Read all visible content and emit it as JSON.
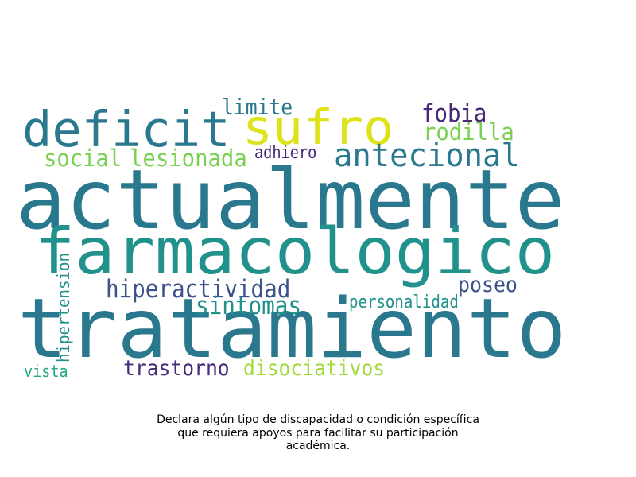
{
  "words": [
    {
      "text": "actualmente",
      "color": "#2a788e"
    },
    {
      "text": "tratamiento",
      "color": "#2a788e"
    },
    {
      "text": "farmacologico",
      "color": "#21918c"
    },
    {
      "text": "deficit",
      "color": "#2a788e"
    },
    {
      "text": "sufro",
      "color": "#dde318"
    },
    {
      "text": "antecional",
      "color": "#2a788e"
    },
    {
      "text": "fobia",
      "color": "#482878"
    },
    {
      "text": "rodilla",
      "color": "#7ad151"
    },
    {
      "text": "limite",
      "color": "#2a788e"
    },
    {
      "text": "social",
      "color": "#7ad151"
    },
    {
      "text": "lesionada",
      "color": "#7ad151"
    },
    {
      "text": "adhiero",
      "color": "#482878"
    },
    {
      "text": "hiperactividad",
      "color": "#3b528b"
    },
    {
      "text": "sintomas",
      "color": "#21918c"
    },
    {
      "text": "poseo",
      "color": "#3b528b"
    },
    {
      "text": "personalidad",
      "color": "#21918c"
    },
    {
      "text": "hipertension",
      "color": "#21918c"
    },
    {
      "text": "trastorno",
      "color": "#482878"
    },
    {
      "text": "disociativos",
      "color": "#a0da39"
    },
    {
      "text": "vista",
      "color": "#22a884"
    }
  ],
  "caption": [
    "Declara algún tipo de discapacidad o condición específica",
    "que requiera apoyos para facilitar su participación",
    "académica."
  ]
}
